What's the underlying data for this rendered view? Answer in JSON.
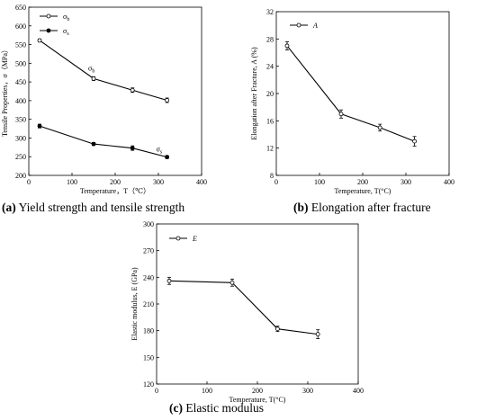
{
  "chart_data": [
    {
      "type": "line",
      "xlabel": "Temperature，T（℃）",
      "ylabel": "Tensile Properties，σ（MPa）",
      "xlim": [
        0,
        400
      ],
      "ylim": [
        200,
        650
      ],
      "xticks": [
        "0",
        "100",
        "200",
        "300",
        "400"
      ],
      "yticks": [
        "200",
        "250",
        "300",
        "350",
        "400",
        "450",
        "500",
        "550",
        "600",
        "650"
      ],
      "grid": false,
      "legend": "top-left",
      "x": [
        25,
        150,
        240,
        320
      ],
      "series": [
        {
          "name": "σb",
          "marker": "open-circle",
          "values": [
            561,
            459,
            428,
            401
          ],
          "err": [
            4,
            5,
            6,
            6
          ],
          "label": "σb"
        },
        {
          "name": "σs",
          "marker": "filled-circle",
          "values": [
            332,
            284,
            273,
            249
          ],
          "err": [
            5,
            4,
            6,
            4
          ],
          "label": "σs"
        }
      ],
      "caption_letter": "(a)",
      "caption_text": "Yield strength and tensile strength"
    },
    {
      "type": "line",
      "xlabel": "Temperature, T(°C)",
      "ylabel": "Elongation after Fracture, A (%)",
      "xlim": [
        0,
        400
      ],
      "ylim": [
        8,
        32
      ],
      "xticks": [
        "0",
        "100",
        "200",
        "300",
        "400"
      ],
      "yticks": [
        "8",
        "12",
        "16",
        "20",
        "24",
        "28",
        "32"
      ],
      "grid": false,
      "legend": "top-left",
      "x": [
        25,
        150,
        240,
        320
      ],
      "series": [
        {
          "name": "A",
          "marker": "open-circle",
          "values": [
            27.0,
            17.0,
            15.0,
            13.0
          ],
          "err": [
            0.6,
            0.6,
            0.5,
            0.7
          ]
        }
      ],
      "caption_letter": "(b)",
      "caption_text": "Elongation after fracture"
    },
    {
      "type": "line",
      "xlabel": "Temperature, T(°C)",
      "ylabel": "Elastic modulus, E (GPa)",
      "xlim": [
        0,
        400
      ],
      "ylim": [
        120,
        300
      ],
      "xticks": [
        "0",
        "100",
        "200",
        "300",
        "400"
      ],
      "yticks": [
        "120",
        "150",
        "180",
        "210",
        "240",
        "270",
        "300"
      ],
      "grid": false,
      "legend": "top-left",
      "x": [
        25,
        150,
        240,
        320
      ],
      "series": [
        {
          "name": "E",
          "marker": "open-circle",
          "values": [
            236,
            234,
            182,
            176
          ],
          "err": [
            4,
            4,
            3,
            5
          ]
        }
      ],
      "caption_letter": "(c)",
      "caption_text": "Elastic modulus"
    }
  ]
}
